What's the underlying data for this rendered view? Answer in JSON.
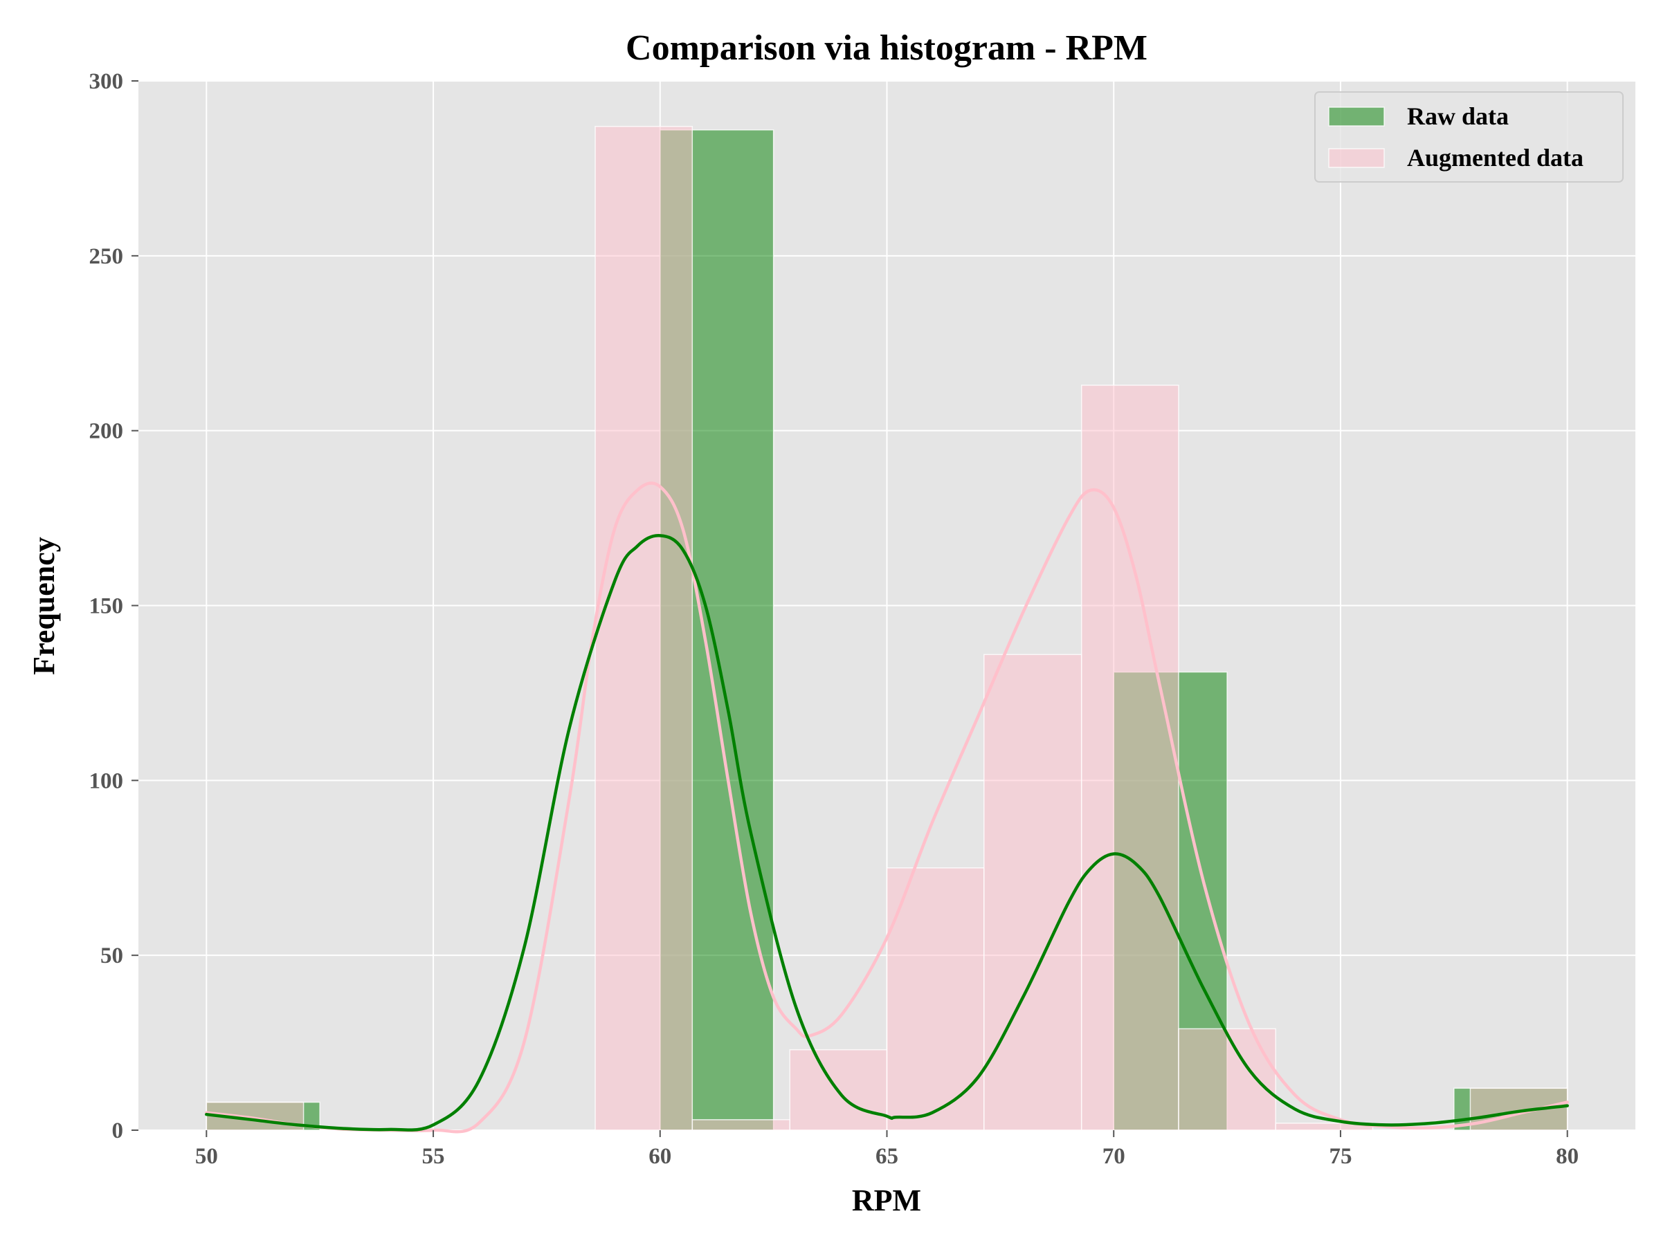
{
  "chart_data": {
    "type": "bar",
    "subtype": "overlaid-histogram-with-kde",
    "title": "Comparison via histogram - RPM",
    "xlabel": "RPM",
    "ylabel": "Frequency",
    "xlim": [
      48.5,
      81.5
    ],
    "ylim": [
      0,
      300
    ],
    "xticks": [
      50,
      55,
      60,
      65,
      70,
      75,
      80
    ],
    "yticks": [
      0,
      50,
      100,
      150,
      200,
      250,
      300
    ],
    "grid": true,
    "legend_position": "top-right",
    "series": [
      {
        "name": "Raw data",
        "color": "#008000",
        "bins": [
          {
            "x0": 50.0,
            "x1": 52.5,
            "count": 8
          },
          {
            "x0": 52.5,
            "x1": 55.0,
            "count": 0
          },
          {
            "x0": 55.0,
            "x1": 57.5,
            "count": 0
          },
          {
            "x0": 57.5,
            "x1": 60.0,
            "count": 0
          },
          {
            "x0": 60.0,
            "x1": 62.5,
            "count": 286
          },
          {
            "x0": 62.5,
            "x1": 65.0,
            "count": 0
          },
          {
            "x0": 65.0,
            "x1": 67.5,
            "count": 0
          },
          {
            "x0": 67.5,
            "x1": 70.0,
            "count": 0
          },
          {
            "x0": 70.0,
            "x1": 72.5,
            "count": 131
          },
          {
            "x0": 72.5,
            "x1": 75.0,
            "count": 0
          },
          {
            "x0": 75.0,
            "x1": 77.5,
            "count": 0
          },
          {
            "x0": 77.5,
            "x1": 80.0,
            "count": 12
          }
        ],
        "kde": {
          "x": [
            50,
            51,
            52,
            53,
            54,
            55,
            56,
            57,
            58,
            59,
            59.5,
            60,
            60.5,
            61,
            61.5,
            62,
            63,
            64,
            65,
            65.2,
            66,
            67,
            68,
            69,
            69.5,
            70,
            70.5,
            71,
            72,
            73,
            74,
            75,
            76,
            77,
            78,
            79,
            80
          ],
          "y": [
            4.5,
            3,
            1.5,
            0.5,
            0.2,
            1.5,
            14,
            52,
            115,
            157,
            167,
            170,
            166,
            150,
            120,
            85,
            35,
            10,
            4,
            3.7,
            5,
            15,
            38,
            65,
            75,
            79,
            76,
            67,
            40,
            17,
            6,
            2.5,
            1.5,
            2,
            3.5,
            5.5,
            7
          ]
        }
      },
      {
        "name": "Augmented data",
        "color": "#ffc0cb",
        "bins": [
          {
            "x0": 50.0,
            "x1": 52.14,
            "count": 8
          },
          {
            "x0": 52.14,
            "x1": 54.29,
            "count": 0
          },
          {
            "x0": 54.29,
            "x1": 56.43,
            "count": 0
          },
          {
            "x0": 56.43,
            "x1": 58.57,
            "count": 0
          },
          {
            "x0": 58.57,
            "x1": 60.71,
            "count": 287
          },
          {
            "x0": 60.71,
            "x1": 62.86,
            "count": 3
          },
          {
            "x0": 62.86,
            "x1": 65.0,
            "count": 23
          },
          {
            "x0": 65.0,
            "x1": 67.14,
            "count": 75
          },
          {
            "x0": 67.14,
            "x1": 69.29,
            "count": 136
          },
          {
            "x0": 69.29,
            "x1": 71.43,
            "count": 213
          },
          {
            "x0": 71.43,
            "x1": 73.57,
            "count": 29
          },
          {
            "x0": 73.57,
            "x1": 75.71,
            "count": 2
          },
          {
            "x0": 75.71,
            "x1": 77.86,
            "count": 0
          },
          {
            "x0": 77.86,
            "x1": 80.0,
            "count": 12
          }
        ],
        "kde": {
          "x": [
            50,
            51,
            52,
            53,
            54,
            55,
            56,
            57,
            58,
            58.5,
            59,
            59.5,
            60,
            60.5,
            61,
            61.5,
            62,
            62.5,
            63,
            63.3,
            64,
            65,
            66,
            67,
            68,
            69,
            69.5,
            70,
            70.5,
            71,
            72,
            73,
            74,
            75,
            76,
            77,
            78,
            79,
            80
          ],
          "y": [
            5,
            3.5,
            1.5,
            0.3,
            0,
            0,
            2,
            25,
            95,
            140,
            172,
            183,
            184,
            172,
            140,
            100,
            62,
            38,
            29,
            27,
            33,
            55,
            88,
            118,
            148,
            175,
            183,
            178,
            158,
            128,
            70,
            30,
            10,
            3,
            1,
            0.7,
            2,
            5,
            8
          ]
        }
      }
    ]
  }
}
